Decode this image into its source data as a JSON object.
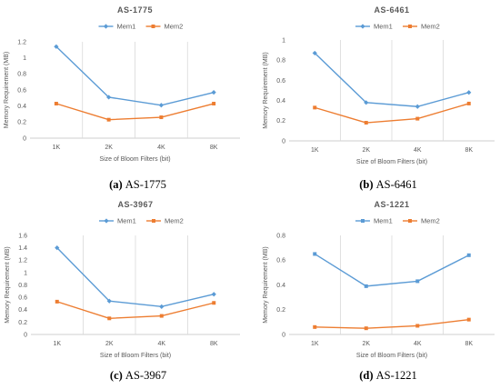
{
  "colors": {
    "mem1": "#5b9bd5",
    "mem2": "#ed7d31"
  },
  "chart_data": [
    {
      "type": "line",
      "title": "AS-1775",
      "caption_tag": "(a)",
      "caption_text": "AS-1775",
      "categories": [
        "1K",
        "2K",
        "4K",
        "8K"
      ],
      "xlabel": "Size of Bloom Filters (bit)",
      "ylabel": "Memory Requirement (MB)",
      "ylim": [
        0,
        1.2
      ],
      "yticks": [
        "0",
        "0.2",
        "0.4",
        "0.6",
        "0.8",
        "1",
        "1.2"
      ],
      "legend": "top-right",
      "marker1": "diamond",
      "series": [
        {
          "name": "Mem1",
          "values": [
            1.14,
            0.51,
            0.41,
            0.57
          ]
        },
        {
          "name": "Mem2",
          "values": [
            0.43,
            0.23,
            0.26,
            0.43
          ]
        }
      ]
    },
    {
      "type": "line",
      "title": "AS-6461",
      "caption_tag": "(b)",
      "caption_text": "AS-6461",
      "categories": [
        "1K",
        "2K",
        "4K",
        "8K"
      ],
      "xlabel": "Size of Bloom Filters (bit)",
      "ylabel": "Memory Requirement (MB)",
      "ylim": [
        0,
        1
      ],
      "yticks": [
        "0",
        "0.2",
        "0.4",
        "0.6",
        "0.8",
        "1"
      ],
      "legend": "top-right",
      "marker1": "diamond",
      "series": [
        {
          "name": "Mem1",
          "values": [
            0.87,
            0.38,
            0.34,
            0.48
          ]
        },
        {
          "name": "Mem2",
          "values": [
            0.33,
            0.18,
            0.22,
            0.37
          ]
        }
      ]
    },
    {
      "type": "line",
      "title": "AS-3967",
      "caption_tag": "(c)",
      "caption_text": "AS-3967",
      "categories": [
        "1K",
        "2K",
        "4K",
        "8K"
      ],
      "xlabel": "Size of Bloom Filters (bit)",
      "ylabel": "Memory Requirement (MB)",
      "ylim": [
        0,
        1.6
      ],
      "yticks": [
        "0",
        "0.2",
        "0.4",
        "0.6",
        "0.8",
        "1",
        "1.2",
        "1.4",
        "1.6"
      ],
      "legend": "top-right",
      "marker1": "diamond",
      "series": [
        {
          "name": "Mem1",
          "values": [
            1.4,
            0.54,
            0.45,
            0.65
          ]
        },
        {
          "name": "Mem2",
          "values": [
            0.53,
            0.26,
            0.3,
            0.51
          ]
        }
      ]
    },
    {
      "type": "line",
      "title": "AS-1221",
      "caption_tag": "(d)",
      "caption_text": "AS-1221",
      "categories": [
        "1K",
        "2K",
        "4K",
        "8K"
      ],
      "xlabel": "Size of Bloom Filters (bit)",
      "ylabel": "Memory Requirement (MB)",
      "ylim": [
        0,
        0.8
      ],
      "yticks": [
        "0",
        "0.2",
        "0.4",
        "0.6",
        "0.8"
      ],
      "legend": "top-right",
      "marker1": "square",
      "series": [
        {
          "name": "Mem1",
          "values": [
            0.65,
            0.39,
            0.43,
            0.64
          ]
        },
        {
          "name": "Mem2",
          "values": [
            0.06,
            0.05,
            0.07,
            0.12
          ]
        }
      ]
    }
  ]
}
